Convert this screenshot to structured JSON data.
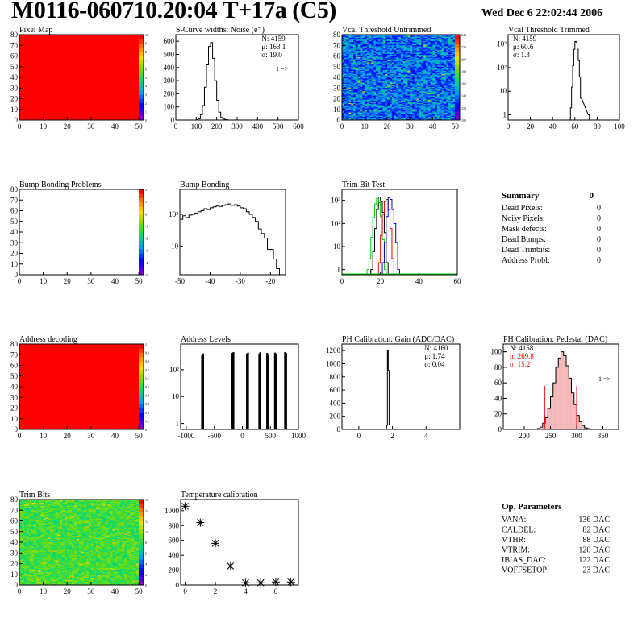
{
  "header": {
    "title": "M0116-060710.20:04 T+17a (C5)",
    "date": "Wed Dec  6 22:02:44 2006"
  },
  "colors": {
    "axis": "#000000",
    "hist": "#000000",
    "red_map": "#ff0000",
    "green": "#00cc00",
    "red": "#ee0000",
    "blue": "#0000cc",
    "pedestal_fill": "#f4b8b8",
    "pedestal_lines": "#ff0000"
  },
  "chart_data": [
    {
      "id": "pixel-map",
      "type": "heatmap",
      "title": "Pixel Map",
      "xlim": [
        0,
        52
      ],
      "ylim": [
        0,
        80
      ],
      "xticks": [
        0,
        10,
        20,
        30,
        40,
        50
      ],
      "yticks": [
        0,
        10,
        20,
        30,
        40,
        50,
        60,
        70,
        80
      ],
      "fill": "uniform",
      "value": 10,
      "colorbar_ticks": [
        0,
        1,
        2,
        3,
        4,
        5,
        6,
        7,
        8,
        9,
        10
      ]
    },
    {
      "id": "scurve-widths",
      "type": "bar",
      "title": "S-Curve widths: Noise (e⁻)",
      "xlim": [
        0,
        600
      ],
      "ylim": [
        0,
        650
      ],
      "xticks": [
        0,
        100,
        200,
        300,
        400,
        500,
        600
      ],
      "yticks": [
        0,
        100,
        200,
        300,
        400,
        500,
        600
      ],
      "stats": [
        "N: 4159",
        "μ: 163.1",
        "σ: 19.0"
      ],
      "overflow_note": "1 =>",
      "x": [
        100,
        110,
        120,
        130,
        140,
        150,
        160,
        170,
        180,
        190,
        200,
        210,
        220,
        230,
        240,
        250
      ],
      "values": [
        3,
        10,
        40,
        110,
        250,
        420,
        560,
        590,
        470,
        300,
        150,
        60,
        20,
        8,
        3,
        1
      ]
    },
    {
      "id": "vcal-untrimmed",
      "type": "heatmap",
      "title": "Vcal Threshold Untrimmed",
      "xlim": [
        0,
        52
      ],
      "ylim": [
        0,
        80
      ],
      "xticks": [
        0,
        10,
        20,
        30,
        40,
        50
      ],
      "yticks": [
        0,
        10,
        20,
        30,
        40,
        50,
        60,
        70,
        80
      ],
      "fill": "random-blue",
      "colorbar_ticks": [
        100,
        120,
        140,
        160,
        180,
        200,
        220,
        240
      ]
    },
    {
      "id": "vcal-trimmed",
      "type": "bar",
      "title": "Vcal Threshold Trimmed",
      "scale": "log",
      "xlim": [
        0,
        100
      ],
      "ylim": [
        0.6,
        2500
      ],
      "xticks": [
        0,
        20,
        40,
        60,
        80,
        100
      ],
      "yticks": [
        "1",
        "10",
        "10²",
        "10³"
      ],
      "stats": [
        "N: 4159",
        "μ: 60.6",
        "σ: 1.3"
      ],
      "x": [
        56,
        57,
        58,
        59,
        60,
        61,
        62,
        63,
        64,
        65,
        72
      ],
      "values": [
        2,
        15,
        120,
        600,
        1300,
        1200,
        600,
        200,
        40,
        5,
        1
      ]
    },
    {
      "id": "bump-problems",
      "type": "heatmap",
      "title": "Bump Bonding Problems",
      "xlim": [
        0,
        52
      ],
      "ylim": [
        0,
        80
      ],
      "xticks": [
        0,
        10,
        20,
        30,
        40,
        50
      ],
      "yticks": [
        0,
        10,
        20,
        30,
        40,
        50,
        60,
        70,
        80
      ],
      "fill": "empty",
      "colorbar_ticks": [
        -5,
        -4,
        -3,
        -2,
        -1,
        0,
        1,
        2
      ]
    },
    {
      "id": "bump-bonding",
      "type": "bar",
      "title": "Bump Bonding",
      "scale": "log",
      "xlim": [
        -50,
        -15
      ],
      "ylim": [
        1.3,
        600
      ],
      "xticks": [
        -50,
        -40,
        -30,
        -20
      ],
      "yticks": [
        "10",
        "10²"
      ],
      "x": [
        -50,
        -49,
        -48,
        -47,
        -46,
        -45,
        -44,
        -43,
        -42,
        -41,
        -40,
        -39,
        -38,
        -37,
        -36,
        -35,
        -34,
        -33,
        -32,
        -31,
        -30,
        -29,
        -28,
        -27,
        -26,
        -25,
        -24,
        -23,
        -22,
        -21,
        -20,
        -19,
        -18
      ],
      "values": [
        70,
        90,
        80,
        95,
        100,
        110,
        120,
        130,
        150,
        140,
        160,
        170,
        180,
        175,
        190,
        200,
        210,
        190,
        200,
        180,
        160,
        150,
        120,
        100,
        80,
        60,
        35,
        25,
        18,
        8,
        8,
        4,
        2
      ]
    },
    {
      "id": "trim-bit-test",
      "type": "line",
      "title": "Trim Bit Test",
      "scale": "log",
      "xlim": [
        0,
        60
      ],
      "ylim": [
        0.6,
        3000
      ],
      "xticks": [
        0,
        20,
        40,
        60
      ],
      "yticks": [
        "1",
        "10",
        "10²",
        "10³"
      ],
      "series": [
        {
          "color": "#000000",
          "x": [
            15,
            16,
            17,
            18,
            19,
            20,
            21,
            22,
            23
          ],
          "values": [
            1,
            6,
            60,
            400,
            1400,
            900,
            300,
            40,
            2
          ]
        },
        {
          "color": "#00cc00",
          "x": [
            13,
            14,
            15,
            16,
            17,
            18,
            19,
            20,
            21,
            22
          ],
          "values": [
            1,
            3,
            25,
            180,
            700,
            1200,
            800,
            200,
            20,
            1
          ]
        },
        {
          "color": "#ee0000",
          "x": [
            19,
            20,
            21,
            22,
            23,
            24,
            25,
            26
          ],
          "values": [
            2,
            30,
            250,
            900,
            1100,
            400,
            60,
            3
          ]
        },
        {
          "color": "#0000cc",
          "x": [
            21,
            22,
            23,
            24,
            25,
            26,
            27,
            28,
            29
          ],
          "values": [
            2,
            15,
            200,
            1300,
            1100,
            400,
            100,
            15,
            1
          ]
        }
      ]
    },
    {
      "id": "address-decoding",
      "type": "heatmap",
      "title": "Address decoding",
      "xlim": [
        0,
        52
      ],
      "ylim": [
        0,
        80
      ],
      "xticks": [
        0,
        10,
        20,
        30,
        40,
        50
      ],
      "yticks": [
        0,
        10,
        20,
        30,
        40,
        50,
        60,
        70,
        80
      ],
      "fill": "uniform",
      "value": 1,
      "colorbar_ticks": [
        0,
        0.1,
        0.2,
        0.3,
        0.4,
        0.5,
        0.6,
        0.7,
        0.8,
        0.9,
        1
      ]
    },
    {
      "id": "address-levels",
      "type": "bar",
      "title": "Address Levels",
      "scale": "log",
      "xlim": [
        -1100,
        1000
      ],
      "ylim": [
        0.6,
        900
      ],
      "xticks": [
        -1000,
        -500,
        0,
        500,
        1000
      ],
      "yticks": [
        "1",
        "10",
        "10²"
      ],
      "x": [
        -720,
        -700,
        -180,
        -160,
        80,
        100,
        300,
        320,
        440,
        460,
        580,
        600,
        760,
        780
      ],
      "values": [
        350,
        400,
        420,
        450,
        400,
        430,
        400,
        450,
        420,
        380,
        430,
        400,
        450,
        420
      ]
    },
    {
      "id": "ph-gain",
      "type": "bar",
      "title": "PH Calibration: Gain (ADC/DAC)",
      "xlim": [
        -1,
        6
      ],
      "ylim": [
        0,
        1300
      ],
      "xticks": [
        0,
        2,
        4
      ],
      "yticks": [
        0,
        200,
        400,
        600,
        800,
        1000,
        1200
      ],
      "stats": [
        "N: 4160",
        "μ: 1.74",
        "σ: 0.04"
      ],
      "x": [
        1.6,
        1.65,
        1.7,
        1.75,
        1.8,
        1.85
      ],
      "values": [
        5,
        60,
        1200,
        900,
        80,
        3
      ]
    },
    {
      "id": "ph-pedestal",
      "type": "bar",
      "title": "PH Calibration: Pedestal (DAC)",
      "xlim": [
        160,
        380
      ],
      "ylim": [
        0,
        110
      ],
      "xticks": [
        200,
        250,
        300,
        350
      ],
      "yticks": [
        0,
        20,
        40,
        60,
        80,
        100
      ],
      "stats": [
        "N: 4158",
        "μ: 269.8",
        "σ: 15.2"
      ],
      "overflow_note": "1 =>",
      "cut_lines": [
        239,
        300
      ],
      "x": [
        225,
        230,
        235,
        240,
        245,
        250,
        255,
        260,
        265,
        270,
        275,
        280,
        285,
        290,
        295,
        300,
        305,
        310,
        315,
        320
      ],
      "values": [
        1,
        3,
        8,
        15,
        27,
        42,
        60,
        80,
        92,
        100,
        95,
        82,
        66,
        47,
        32,
        18,
        10,
        5,
        2,
        1
      ]
    },
    {
      "id": "trim-bits",
      "type": "heatmap",
      "title": "Trim Bits",
      "xlim": [
        0,
        52
      ],
      "ylim": [
        0,
        80
      ],
      "xticks": [
        0,
        10,
        20,
        30,
        40,
        50
      ],
      "yticks": [
        0,
        10,
        20,
        30,
        40,
        50,
        60,
        70,
        80
      ],
      "fill": "random-green",
      "colorbar_ticks": [
        0,
        2,
        4,
        6,
        8,
        10,
        12,
        14,
        16
      ]
    },
    {
      "id": "temperature-calibration",
      "type": "scatter",
      "title": "Temperature calibration",
      "xlim": [
        -0.3,
        7.5
      ],
      "ylim": [
        0,
        1150
      ],
      "xticks": [
        0,
        2,
        4,
        6
      ],
      "yticks": [
        0,
        200,
        400,
        600,
        800,
        1000
      ],
      "x": [
        0,
        1,
        2,
        3,
        4,
        5,
        6,
        7
      ],
      "values": [
        1060,
        840,
        560,
        255,
        30,
        30,
        40,
        40
      ]
    }
  ],
  "summary": {
    "title": "Summary",
    "total": "0",
    "rows": [
      {
        "label": "Dead Pixels:",
        "value": "0"
      },
      {
        "label": "Noisy Pixels:",
        "value": "0"
      },
      {
        "label": "Mask defects:",
        "value": "0"
      },
      {
        "label": "Dead Bumps:",
        "value": "0"
      },
      {
        "label": "Dead Trimbits:",
        "value": "0"
      },
      {
        "label": "Address Probl:",
        "value": "0"
      }
    ]
  },
  "op_parameters": {
    "title": "Op. Parameters",
    "rows": [
      {
        "label": "VANA:",
        "value": "136 DAC"
      },
      {
        "label": "CALDEL:",
        "value": "82 DAC"
      },
      {
        "label": "VTHR:",
        "value": "88 DAC"
      },
      {
        "label": "VTRIM:",
        "value": "120 DAC"
      },
      {
        "label": "IBIAS_DAC:",
        "value": "122 DAC"
      },
      {
        "label": "VOFFSETOP:",
        "value": "23 DAC"
      }
    ]
  }
}
